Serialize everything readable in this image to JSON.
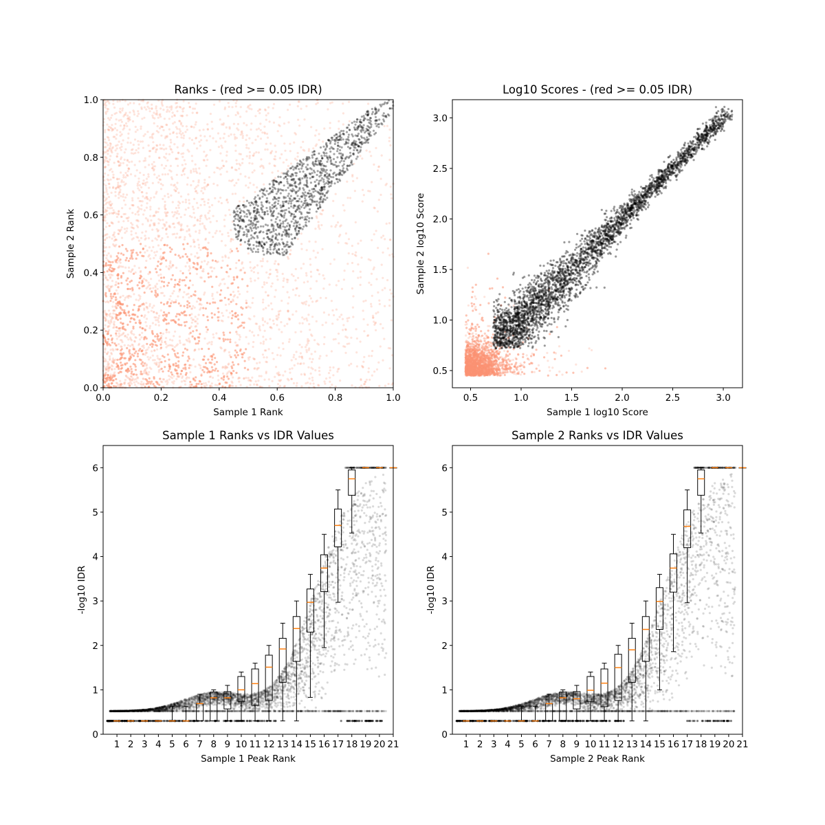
{
  "chart_data": [
    {
      "type": "scatter",
      "title": "Ranks - (red >= 0.05 IDR)",
      "xlabel": "Sample 1 Rank",
      "ylabel": "Sample 2 Rank",
      "xlim": [
        0,
        1
      ],
      "ylim": [
        0,
        1
      ],
      "xticks": [
        "0.0",
        "0.2",
        "0.4",
        "0.6",
        "0.8",
        "1.0"
      ],
      "yticks": [
        "0.0",
        "0.2",
        "0.4",
        "0.6",
        "0.8",
        "1.0"
      ],
      "colors": {
        "passing": "#000000",
        "failing": "#fc9272"
      },
      "grid": false
    },
    {
      "type": "scatter",
      "title": "Log10 Scores - (red >= 0.05 IDR)",
      "xlabel": "Sample 1 log10 Score",
      "ylabel": "Sample 2 log10 Score",
      "xlim": [
        0.32,
        3.19
      ],
      "ylim": [
        0.33,
        3.18
      ],
      "xticks": [
        "0.5",
        "1.0",
        "1.5",
        "2.0",
        "2.5",
        "3.0"
      ],
      "yticks": [
        "0.5",
        "1.0",
        "1.5",
        "2.0",
        "2.5",
        "3.0"
      ],
      "colors": {
        "passing": "#000000",
        "failing": "#fc9272"
      },
      "grid": false
    },
    {
      "type": "scatter",
      "title": "Sample 1 Ranks vs IDR Values",
      "xlabel": "Sample 1 Peak Rank",
      "ylabel": "-log10 IDR",
      "xlim": [
        0,
        21
      ],
      "ylim": [
        0,
        6.5
      ],
      "xticks": [
        "1",
        "2",
        "3",
        "4",
        "5",
        "6",
        "7",
        "8",
        "9",
        "10",
        "11",
        "12",
        "13",
        "14",
        "15",
        "16",
        "17",
        "18",
        "19",
        "20",
        "21"
      ],
      "yticks": [
        "0",
        "1",
        "2",
        "3",
        "4",
        "5",
        "6"
      ],
      "grid": false,
      "boxplot": {
        "median": [
          0.3,
          0.3,
          0.3,
          0.3,
          0.3,
          0.3,
          0.69,
          0.82,
          0.82,
          1.0,
          1.14,
          1.51,
          1.92,
          2.38,
          2.97,
          3.74,
          4.7,
          5.75,
          6,
          6,
          6
        ],
        "q1": [
          0.3,
          0.3,
          0.3,
          0.3,
          0.3,
          0.3,
          0.3,
          0.3,
          0.57,
          0.74,
          0.65,
          0.76,
          1.17,
          1.64,
          2.3,
          3.21,
          4.22,
          5.38,
          6,
          6,
          6
        ],
        "q3": [
          0.3,
          0.3,
          0.3,
          0.3,
          0.3,
          0.3,
          0.69,
          0.95,
          0.96,
          1.3,
          1.47,
          1.78,
          2.16,
          2.65,
          3.27,
          4.04,
          5.07,
          5.95,
          6,
          6,
          6
        ],
        "whislo": [
          0.3,
          0.3,
          0.3,
          0.3,
          0.3,
          0.3,
          0.3,
          0.3,
          0.3,
          0.3,
          0.3,
          0.3,
          0.3,
          0.3,
          0.83,
          1.95,
          2.97,
          4.53,
          6,
          6,
          6
        ],
        "whishi": [
          0.3,
          0.3,
          0.3,
          0.3,
          0.63,
          0.63,
          0.9,
          1.0,
          1.1,
          1.4,
          1.6,
          2.0,
          2.5,
          3.0,
          3.6,
          4.5,
          5.5,
          6,
          6,
          6,
          6
        ]
      }
    },
    {
      "type": "scatter",
      "title": "Sample 2 Ranks vs IDR Values",
      "xlabel": "Sample 2 Peak Rank",
      "ylabel": "-log10 IDR",
      "xlim": [
        0,
        21
      ],
      "ylim": [
        0,
        6.5
      ],
      "xticks": [
        "1",
        "2",
        "3",
        "4",
        "5",
        "6",
        "7",
        "8",
        "9",
        "10",
        "11",
        "12",
        "13",
        "14",
        "15",
        "16",
        "17",
        "18",
        "19",
        "20",
        "21"
      ],
      "yticks": [
        "0",
        "1",
        "2",
        "3",
        "4",
        "5",
        "6"
      ],
      "grid": false,
      "boxplot": {
        "median": [
          0.3,
          0.3,
          0.3,
          0.3,
          0.3,
          0.3,
          0.69,
          0.82,
          0.8,
          0.99,
          1.15,
          1.5,
          1.9,
          2.36,
          2.99,
          3.74,
          4.68,
          5.75,
          6,
          6,
          6
        ],
        "q1": [
          0.3,
          0.3,
          0.3,
          0.3,
          0.3,
          0.3,
          0.3,
          0.3,
          0.57,
          0.74,
          0.62,
          0.76,
          1.17,
          1.64,
          2.36,
          3.2,
          4.2,
          5.38,
          6,
          6,
          6
        ],
        "q3": [
          0.3,
          0.3,
          0.3,
          0.3,
          0.3,
          0.3,
          0.69,
          0.95,
          0.96,
          1.3,
          1.47,
          1.8,
          2.16,
          2.65,
          3.3,
          4.06,
          5.05,
          5.95,
          6,
          6,
          6
        ],
        "whislo": [
          0.3,
          0.3,
          0.3,
          0.3,
          0.3,
          0.3,
          0.3,
          0.3,
          0.3,
          0.3,
          0.3,
          0.3,
          0.3,
          0.3,
          1.0,
          1.86,
          2.96,
          4.53,
          6,
          6,
          6
        ],
        "whishi": [
          0.3,
          0.3,
          0.3,
          0.3,
          0.63,
          0.63,
          0.9,
          1.0,
          1.1,
          1.4,
          1.6,
          2.0,
          2.5,
          3.0,
          3.6,
          4.5,
          5.5,
          6,
          6,
          6,
          6
        ]
      }
    }
  ]
}
